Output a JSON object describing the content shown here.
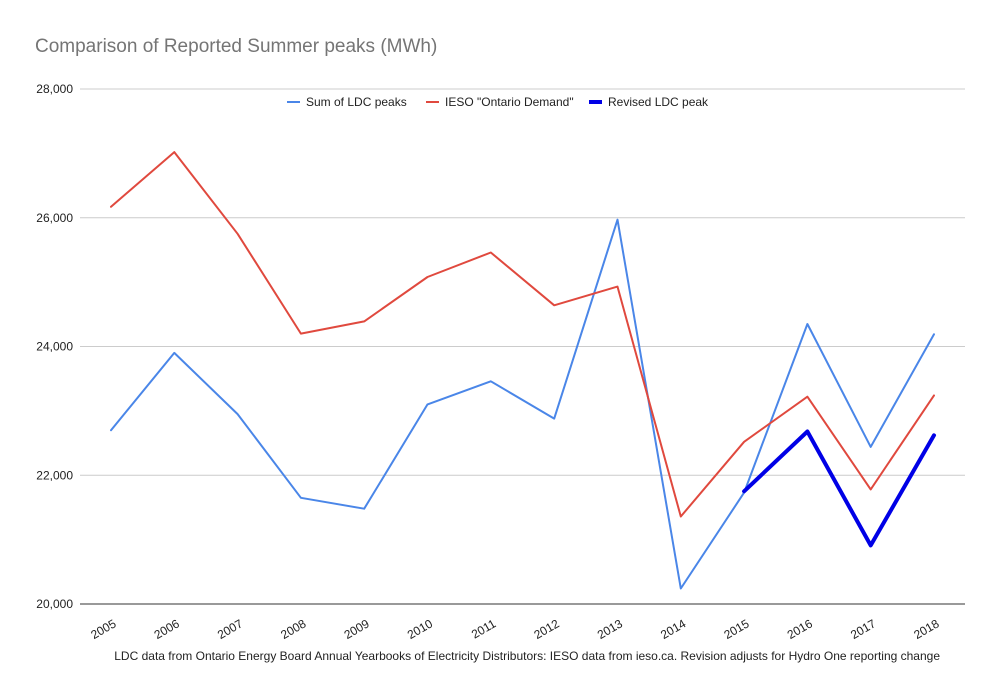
{
  "chart_data": {
    "type": "line",
    "title": "Comparison of Reported Summer peaks (MWh)",
    "caption": "LDC data from Ontario Energy Board Annual Yearbooks of Electricity Distributors: IESO data from ieso.ca. Revision adjusts for Hydro One reporting change",
    "categories": [
      "2005",
      "2006",
      "2007",
      "2008",
      "2009",
      "2010",
      "2011",
      "2012",
      "2013",
      "2014",
      "2015",
      "2016",
      "2017",
      "2018"
    ],
    "ylim": [
      20000,
      28000
    ],
    "yticks": [
      20000,
      22000,
      24000,
      26000,
      28000
    ],
    "ytick_labels": [
      "20,000",
      "22,000",
      "24,000",
      "26,000",
      "28,000"
    ],
    "grid": true,
    "legend_position": "top",
    "series": [
      {
        "name": "Sum of LDC peaks",
        "color": "#4a86e8",
        "values": [
          22700,
          23900,
          22950,
          21650,
          21480,
          23100,
          23460,
          22880,
          25970,
          20240,
          21730,
          24350,
          22440,
          24190
        ]
      },
      {
        "name": "IESO \"Ontario Demand\"",
        "color": "#e0493e",
        "values": [
          26170,
          27020,
          25750,
          24200,
          24390,
          25080,
          25460,
          24640,
          24930,
          21360,
          22520,
          23220,
          21780,
          23240
        ]
      },
      {
        "name": "Revised LDC peak",
        "color": "#0000e6",
        "values": [
          null,
          null,
          null,
          null,
          null,
          null,
          null,
          null,
          null,
          null,
          21750,
          22680,
          20910,
          22620
        ]
      }
    ]
  }
}
